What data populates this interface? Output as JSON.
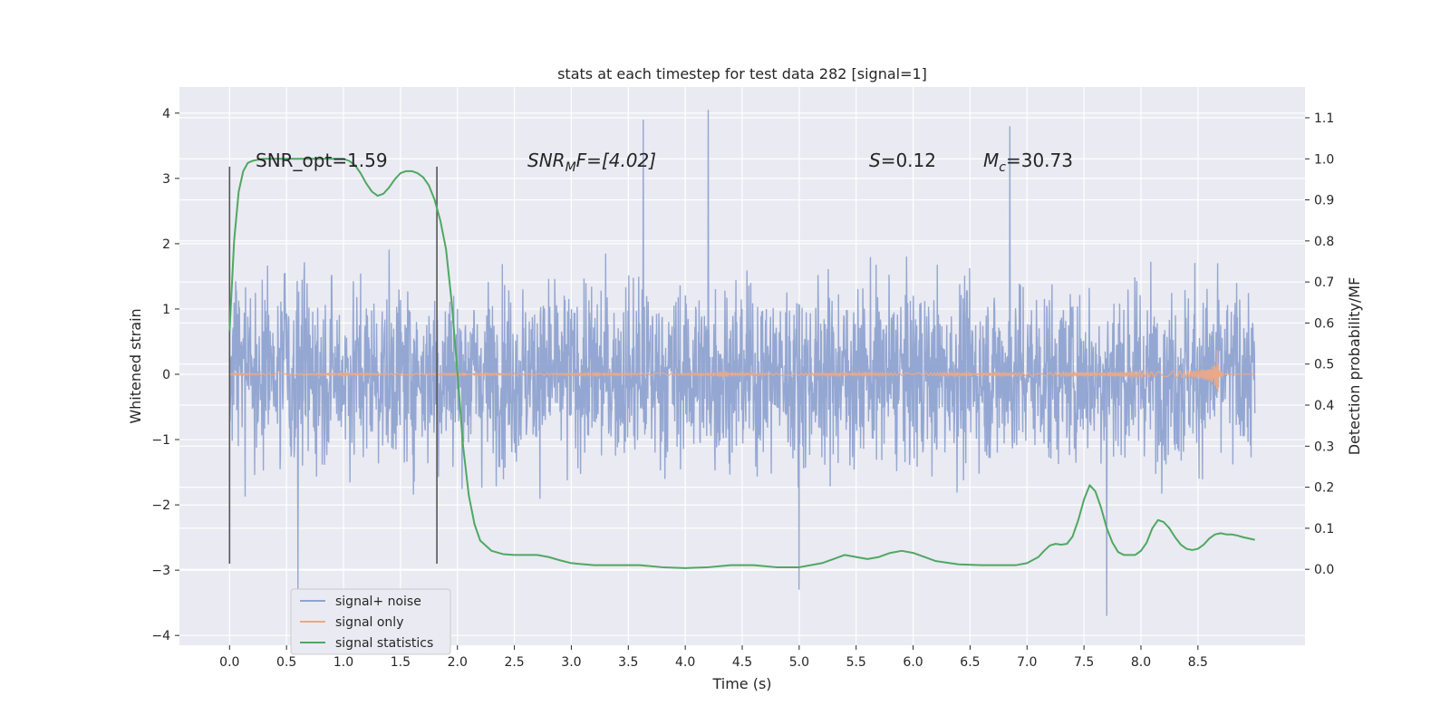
{
  "chart_data": {
    "type": "line",
    "title": "stats at each timestep for test data 282 [signal=1]",
    "xlabel": "Time (s)",
    "ylabel_left": "Whitened strain",
    "ylabel_right": "Detection probability/MF",
    "xlim": [
      -0.44,
      9.44
    ],
    "ylim_left": [
      -4.15,
      4.4
    ],
    "ylim_right": [
      -0.185,
      1.175
    ],
    "x_ticks": [
      "0.0",
      "0.5",
      "1.0",
      "1.5",
      "2.0",
      "2.5",
      "3.0",
      "3.5",
      "4.0",
      "4.5",
      "5.0",
      "5.5",
      "6.0",
      "6.5",
      "7.0",
      "7.5",
      "8.0",
      "8.5"
    ],
    "y_left_ticks": [
      "−4",
      "−3",
      "−2",
      "−1",
      "0",
      "1",
      "2",
      "3",
      "4"
    ],
    "y_right_ticks": [
      "0.0",
      "0.1",
      "0.2",
      "0.3",
      "0.4",
      "0.5",
      "0.6",
      "0.7",
      "0.8",
      "0.9",
      "1.0",
      "1.1"
    ],
    "grid": true,
    "legend_position": "lower-left",
    "annotations": [
      {
        "text": "SNR_opt=1.59",
        "x": 0.2,
        "y": 3.15
      },
      {
        "text_html": "SNRₘF=[4.02]",
        "x": 2.6,
        "y": 3.15
      },
      {
        "text": "S=0.12",
        "x": 5.6,
        "y": 3.15
      },
      {
        "text": "Mc=30.73",
        "x": 6.6,
        "y": 3.15
      }
    ],
    "annotation_texts": {
      "snr_opt": "SNR_opt=1.59",
      "snr_mf_pre": "SNR",
      "snr_mf_sub": "M",
      "snr_mf_post": "F=[4.02]",
      "s_var": "S",
      "s_val": "=0.12",
      "mc_var": "M",
      "mc_sub": "c",
      "mc_val": "=30.73"
    },
    "vertical_lines": [
      {
        "x": 0.0,
        "y_range": [
          -2.9,
          3.18
        ]
      },
      {
        "x": 1.82,
        "y_range": [
          -2.9,
          3.18
        ]
      }
    ],
    "series": [
      {
        "name": "signal+ noise",
        "color": "#8fa3d0",
        "axis": "left",
        "x_range": [
          0.0,
          9.0
        ],
        "samples": 2700,
        "envelope_typical": [
          -2.2,
          2.2
        ],
        "extremes": [
          {
            "x": 3.63,
            "y": 3.9
          },
          {
            "x": 4.2,
            "y": 4.05
          },
          {
            "x": 6.85,
            "y": 3.8
          },
          {
            "x": 7.7,
            "y": -3.7
          },
          {
            "x": 5.0,
            "y": -3.3
          },
          {
            "x": 0.6,
            "y": -3.3
          }
        ]
      },
      {
        "name": "signal only",
        "color": "#e8a98a",
        "axis": "left",
        "x_range": [
          0.0,
          9.0
        ],
        "chirp_peak_x": 8.67,
        "chirp_peak_amp": 0.38
      },
      {
        "name": "signal statistics",
        "color": "#4fa862",
        "axis": "right",
        "x": [
          0.0,
          0.04,
          0.08,
          0.12,
          0.16,
          0.2,
          0.25,
          0.3,
          0.4,
          0.5,
          0.6,
          0.7,
          0.8,
          0.9,
          1.0,
          1.05,
          1.1,
          1.15,
          1.2,
          1.25,
          1.3,
          1.35,
          1.4,
          1.45,
          1.5,
          1.55,
          1.6,
          1.65,
          1.7,
          1.75,
          1.8,
          1.85,
          1.9,
          1.95,
          2.0,
          2.05,
          2.1,
          2.15,
          2.2,
          2.3,
          2.4,
          2.5,
          2.6,
          2.7,
          2.8,
          2.9,
          3.0,
          3.2,
          3.4,
          3.6,
          3.8,
          4.0,
          4.2,
          4.4,
          4.6,
          4.8,
          5.0,
          5.2,
          5.3,
          5.4,
          5.5,
          5.6,
          5.7,
          5.8,
          5.9,
          6.0,
          6.1,
          6.2,
          6.4,
          6.6,
          6.8,
          6.9,
          7.0,
          7.1,
          7.15,
          7.2,
          7.25,
          7.3,
          7.35,
          7.4,
          7.45,
          7.5,
          7.55,
          7.6,
          7.65,
          7.7,
          7.75,
          7.8,
          7.85,
          7.9,
          7.95,
          8.0,
          8.05,
          8.1,
          8.15,
          8.2,
          8.25,
          8.3,
          8.35,
          8.4,
          8.45,
          8.5,
          8.55,
          8.6,
          8.65,
          8.7,
          8.75,
          8.8,
          8.85,
          8.9,
          8.95,
          9.0
        ],
        "y": [
          0.58,
          0.8,
          0.92,
          0.97,
          0.99,
          0.995,
          0.998,
          1.0,
          1.0,
          1.0,
          1.0,
          1.0,
          1.0,
          1.0,
          1.0,
          0.995,
          0.985,
          0.965,
          0.94,
          0.92,
          0.91,
          0.915,
          0.93,
          0.95,
          0.965,
          0.97,
          0.97,
          0.965,
          0.955,
          0.935,
          0.9,
          0.85,
          0.78,
          0.65,
          0.48,
          0.3,
          0.18,
          0.11,
          0.07,
          0.045,
          0.037,
          0.035,
          0.035,
          0.035,
          0.03,
          0.022,
          0.015,
          0.01,
          0.01,
          0.01,
          0.005,
          0.003,
          0.005,
          0.01,
          0.01,
          0.005,
          0.005,
          0.015,
          0.025,
          0.035,
          0.03,
          0.025,
          0.03,
          0.04,
          0.045,
          0.04,
          0.03,
          0.02,
          0.012,
          0.01,
          0.01,
          0.01,
          0.015,
          0.03,
          0.045,
          0.058,
          0.062,
          0.06,
          0.062,
          0.08,
          0.12,
          0.17,
          0.205,
          0.19,
          0.15,
          0.1,
          0.065,
          0.042,
          0.035,
          0.035,
          0.035,
          0.045,
          0.065,
          0.1,
          0.12,
          0.115,
          0.1,
          0.078,
          0.06,
          0.05,
          0.047,
          0.05,
          0.06,
          0.075,
          0.085,
          0.088,
          0.085,
          0.085,
          0.082,
          0.078,
          0.075,
          0.072
        ]
      }
    ]
  }
}
